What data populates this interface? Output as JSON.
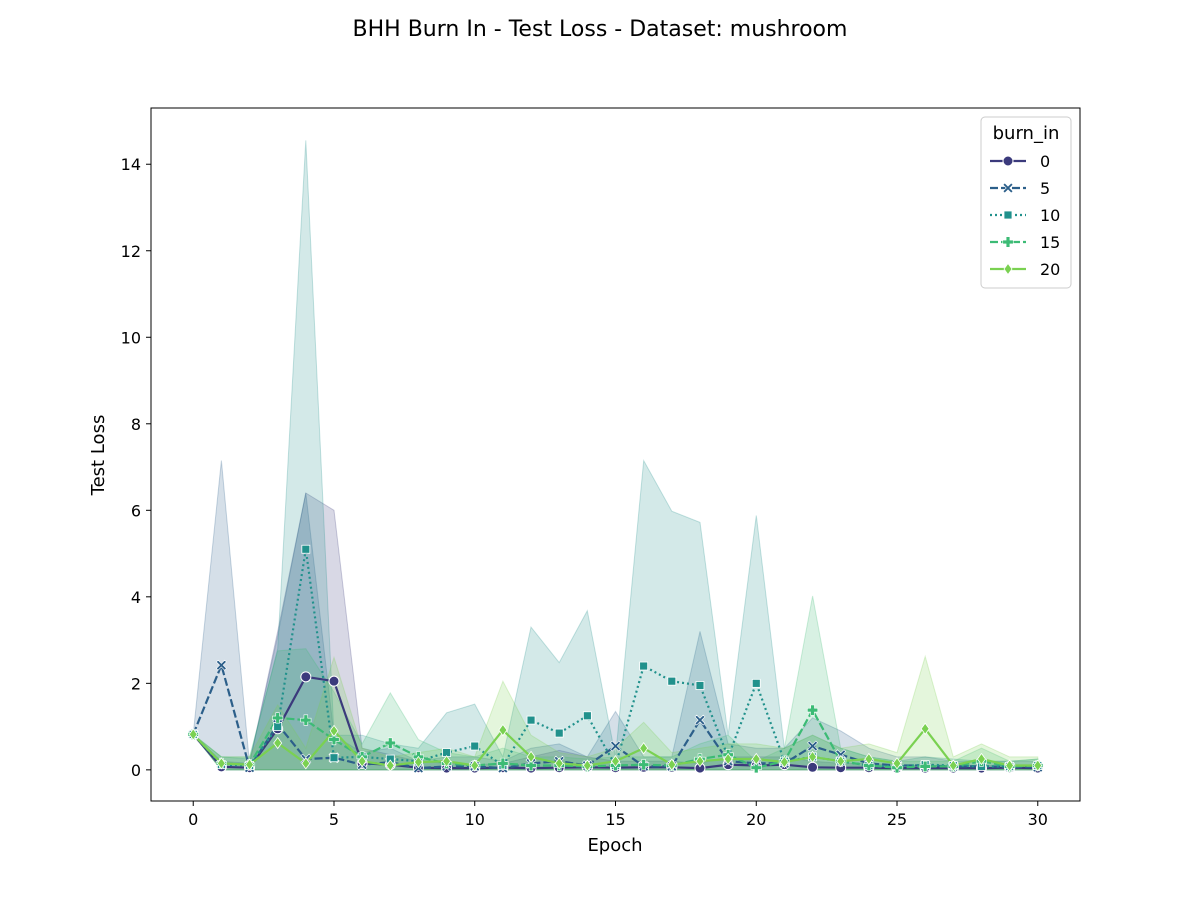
{
  "chart_data": {
    "type": "line",
    "title": "BHH Burn In - Test Loss - Dataset: mushroom",
    "xlabel": "Epoch",
    "ylabel": "Test Loss",
    "xlim": [
      -1.5,
      31.5
    ],
    "ylim": [
      -0.72,
      15.3
    ],
    "xticks": [
      0,
      5,
      10,
      15,
      20,
      25,
      30
    ],
    "yticks": [
      0,
      2,
      4,
      6,
      8,
      10,
      12,
      14
    ],
    "grid": false,
    "legend": {
      "title": "burn_in",
      "placement": "top-right"
    },
    "x": [
      0,
      1,
      2,
      3,
      4,
      5,
      6,
      7,
      8,
      9,
      10,
      11,
      12,
      13,
      14,
      15,
      16,
      17,
      18,
      19,
      20,
      21,
      22,
      23,
      24,
      25,
      26,
      27,
      28,
      29,
      30
    ],
    "series": [
      {
        "name": "0",
        "color": "#3b3a7c",
        "dash": "solid",
        "marker": "circle",
        "values": [
          0.82,
          0.07,
          0.05,
          0.95,
          2.15,
          2.05,
          0.15,
          0.12,
          0.05,
          0.04,
          0.04,
          0.05,
          0.04,
          0.05,
          0.06,
          0.05,
          0.06,
          0.06,
          0.04,
          0.12,
          0.1,
          0.12,
          0.06,
          0.05,
          0.05,
          0.04,
          0.04,
          0.04,
          0.04,
          0.05,
          0.04
        ],
        "lower": [
          0.82,
          0.0,
          0.0,
          0.0,
          0.0,
          0.0,
          0.0,
          0.0,
          0.0,
          0.0,
          0.0,
          0.0,
          0.0,
          0.0,
          0.0,
          0.0,
          0.0,
          0.0,
          0.0,
          0.0,
          0.0,
          0.0,
          0.0,
          0.0,
          0.0,
          0.0,
          0.0,
          0.0,
          0.0,
          0.0,
          0.0
        ],
        "upper": [
          0.82,
          0.2,
          0.15,
          3.2,
          6.4,
          6.0,
          0.5,
          0.35,
          0.2,
          0.15,
          0.12,
          0.15,
          0.3,
          0.45,
          0.3,
          0.2,
          0.2,
          0.2,
          0.15,
          0.3,
          0.3,
          0.3,
          0.2,
          0.15,
          0.15,
          0.1,
          0.1,
          0.1,
          0.1,
          0.1,
          0.1
        ]
      },
      {
        "name": "5",
        "color": "#2c5f8a",
        "dash": "dashed",
        "marker": "x",
        "values": [
          0.82,
          2.42,
          0.05,
          1.05,
          0.25,
          0.28,
          0.12,
          0.18,
          0.04,
          0.08,
          0.08,
          0.04,
          0.15,
          0.2,
          0.1,
          0.55,
          0.08,
          0.08,
          1.15,
          0.2,
          0.15,
          0.15,
          0.55,
          0.35,
          0.15,
          0.1,
          0.1,
          0.08,
          0.08,
          0.07,
          0.06
        ],
        "lower": [
          0.82,
          0.0,
          0.0,
          0.0,
          0.0,
          0.0,
          0.0,
          0.0,
          0.0,
          0.0,
          0.0,
          0.0,
          0.0,
          0.0,
          0.0,
          0.0,
          0.0,
          0.0,
          0.0,
          0.0,
          0.0,
          0.0,
          0.0,
          0.0,
          0.0,
          0.0,
          0.0,
          0.0,
          0.0,
          0.0,
          0.0
        ],
        "upper": [
          0.82,
          7.15,
          0.15,
          3.1,
          6.4,
          0.8,
          0.4,
          0.5,
          0.2,
          0.3,
          0.3,
          0.2,
          0.5,
          0.6,
          0.3,
          1.35,
          0.3,
          0.3,
          3.2,
          0.6,
          0.5,
          0.5,
          1.2,
          0.9,
          0.5,
          0.3,
          0.3,
          0.2,
          0.2,
          0.2,
          0.2
        ]
      },
      {
        "name": "10",
        "color": "#21918c",
        "dash": "dotted",
        "marker": "square",
        "values": [
          0.82,
          0.12,
          0.1,
          1.0,
          5.1,
          0.28,
          0.3,
          0.25,
          0.2,
          0.4,
          0.55,
          0.1,
          1.15,
          0.85,
          1.25,
          0.1,
          2.4,
          2.05,
          1.95,
          0.3,
          2.0,
          0.2,
          0.3,
          0.2,
          0.1,
          0.08,
          0.12,
          0.1,
          0.08,
          0.08,
          0.1
        ],
        "lower": [
          0.82,
          0.0,
          0.0,
          0.0,
          0.0,
          0.0,
          0.0,
          0.0,
          0.0,
          0.0,
          0.0,
          0.0,
          0.0,
          0.0,
          0.0,
          0.0,
          0.0,
          0.0,
          0.0,
          0.0,
          0.0,
          0.0,
          0.0,
          0.0,
          0.0,
          0.0,
          0.0,
          0.0,
          0.0,
          0.0,
          0.0
        ],
        "upper": [
          0.82,
          0.3,
          0.25,
          2.8,
          14.55,
          0.8,
          0.8,
          0.6,
          0.5,
          1.32,
          1.52,
          0.3,
          3.3,
          2.48,
          3.68,
          0.3,
          7.15,
          5.98,
          5.72,
          0.8,
          5.88,
          0.5,
          0.8,
          0.5,
          0.3,
          0.2,
          0.3,
          0.25,
          0.2,
          0.2,
          0.25
        ]
      },
      {
        "name": "15",
        "color": "#3cbb75",
        "dash": "dashed",
        "marker": "plus",
        "values": [
          0.82,
          0.15,
          0.12,
          1.2,
          1.15,
          0.7,
          0.3,
          0.62,
          0.3,
          0.15,
          0.1,
          0.15,
          0.1,
          0.1,
          0.08,
          0.1,
          0.12,
          0.1,
          0.25,
          0.35,
          0.05,
          0.2,
          1.38,
          0.2,
          0.1,
          0.05,
          0.08,
          0.08,
          0.2,
          0.08,
          0.1
        ],
        "lower": [
          0.82,
          0.0,
          0.0,
          0.0,
          0.0,
          0.0,
          0.0,
          0.0,
          0.0,
          0.0,
          0.0,
          0.0,
          0.0,
          0.0,
          0.0,
          0.0,
          0.0,
          0.0,
          0.0,
          0.0,
          0.0,
          0.0,
          0.0,
          0.0,
          0.0,
          0.0,
          0.0,
          0.0,
          0.0,
          0.0,
          0.0
        ],
        "upper": [
          0.82,
          0.3,
          0.3,
          2.75,
          2.8,
          1.8,
          0.6,
          1.78,
          0.7,
          0.4,
          0.3,
          0.5,
          0.3,
          0.3,
          0.25,
          0.3,
          0.3,
          0.3,
          0.6,
          0.8,
          0.2,
          0.5,
          4.02,
          0.5,
          0.3,
          0.2,
          0.2,
          0.2,
          0.5,
          0.2,
          0.25
        ]
      },
      {
        "name": "20",
        "color": "#7ad151",
        "dash": "solid",
        "marker": "diamond",
        "values": [
          0.82,
          0.15,
          0.12,
          0.62,
          0.15,
          0.9,
          0.2,
          0.1,
          0.18,
          0.2,
          0.1,
          0.92,
          0.3,
          0.15,
          0.1,
          0.2,
          0.5,
          0.12,
          0.2,
          0.25,
          0.25,
          0.18,
          0.3,
          0.2,
          0.25,
          0.15,
          0.95,
          0.1,
          0.25,
          0.1,
          0.1
        ],
        "lower": [
          0.82,
          0.0,
          0.0,
          0.0,
          0.0,
          0.0,
          0.0,
          0.0,
          0.0,
          0.0,
          0.0,
          0.0,
          0.0,
          0.0,
          0.0,
          0.0,
          0.0,
          0.0,
          0.0,
          0.0,
          0.0,
          0.0,
          0.0,
          0.0,
          0.0,
          0.0,
          0.0,
          0.0,
          0.0,
          0.0,
          0.0
        ],
        "upper": [
          0.82,
          0.3,
          0.3,
          1.5,
          0.5,
          2.6,
          0.5,
          0.3,
          0.4,
          0.5,
          0.3,
          2.05,
          0.8,
          0.4,
          0.3,
          0.5,
          1.1,
          0.4,
          0.5,
          0.6,
          0.6,
          0.5,
          0.8,
          0.5,
          0.6,
          0.4,
          2.62,
          0.3,
          0.6,
          0.3,
          0.3
        ]
      }
    ]
  }
}
